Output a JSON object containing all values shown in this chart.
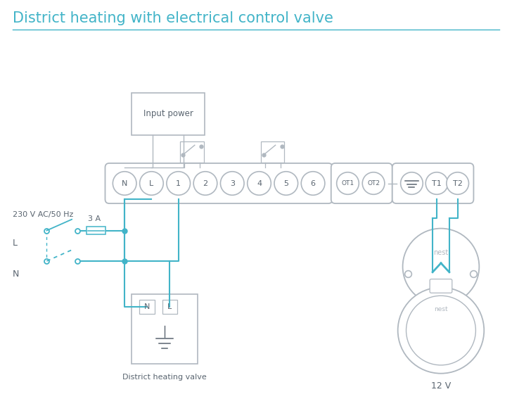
{
  "title": "District heating with electrical control valve",
  "title_color": "#42b4c8",
  "title_fontsize": 15,
  "line_color": "#42b4c8",
  "border_color": "#b0b8c0",
  "text_color": "#5a6570",
  "bg_color": "#ffffff",
  "terminal_labels": [
    "N",
    "L",
    "1",
    "2",
    "3",
    "4",
    "5",
    "6"
  ],
  "ot_labels": [
    "OT1",
    "OT2"
  ],
  "notes": {
    "input_power": "Input power",
    "valve": "District heating valve",
    "voltage": "230 V AC/50 Hz",
    "fuse": "3 A",
    "L_label": "L",
    "N_label": "N",
    "twelve_v": "12 V",
    "nest_label": "nest"
  }
}
